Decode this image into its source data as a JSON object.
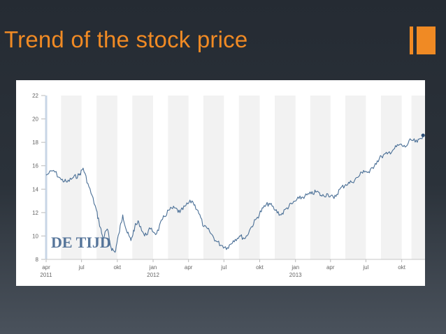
{
  "slide": {
    "title": "Trend of the stock price",
    "accent_color": "#f08a24"
  },
  "chart_data": {
    "type": "line",
    "title": "",
    "xlabel": "",
    "ylabel": "",
    "x_range": [
      "2011-04-01",
      "2013-11-30"
    ],
    "ylim": [
      8,
      22
    ],
    "y_ticks": [
      8,
      10,
      12,
      14,
      16,
      18,
      20,
      22
    ],
    "x_tick_labels": [
      {
        "date": "2011-04-01",
        "label": "apr",
        "year": "2011"
      },
      {
        "date": "2011-07-01",
        "label": "jul",
        "year": ""
      },
      {
        "date": "2011-10-01",
        "label": "okt",
        "year": ""
      },
      {
        "date": "2012-01-01",
        "label": "jan",
        "year": "2012"
      },
      {
        "date": "2012-04-01",
        "label": "apr",
        "year": ""
      },
      {
        "date": "2012-07-01",
        "label": "jul",
        "year": ""
      },
      {
        "date": "2012-10-01",
        "label": "okt",
        "year": ""
      },
      {
        "date": "2013-01-01",
        "label": "jan",
        "year": "2013"
      },
      {
        "date": "2013-04-01",
        "label": "apr",
        "year": ""
      },
      {
        "date": "2013-07-01",
        "label": "jul",
        "year": ""
      },
      {
        "date": "2013-10-01",
        "label": "okt",
        "year": ""
      }
    ],
    "grid": false,
    "shaded_bands": true,
    "line_color": "#4a6f96",
    "logo": "DE TIJD",
    "logo_color": "#3a5f8a",
    "series": [
      {
        "x": [
          "2011-04-01",
          "2011-04-20",
          "2011-05-10",
          "2011-05-25",
          "2011-06-10",
          "2011-06-25",
          "2011-07-05",
          "2011-07-20",
          "2011-08-05",
          "2011-08-15",
          "2011-08-25",
          "2011-09-05",
          "2011-09-15",
          "2011-09-25",
          "2011-10-05",
          "2011-10-15",
          "2011-10-25",
          "2011-11-05",
          "2011-11-15",
          "2011-11-25",
          "2011-12-10",
          "2011-12-25",
          "2012-01-10",
          "2012-01-25",
          "2012-02-10",
          "2012-02-25",
          "2012-03-10",
          "2012-03-25",
          "2012-04-10",
          "2012-04-25",
          "2012-05-10",
          "2012-05-25",
          "2012-06-10",
          "2012-06-25",
          "2012-07-10",
          "2012-07-25",
          "2012-08-10",
          "2012-08-25",
          "2012-09-10",
          "2012-09-25",
          "2012-10-10",
          "2012-10-25",
          "2012-11-10",
          "2012-11-25",
          "2012-12-10",
          "2012-12-25",
          "2013-01-10",
          "2013-01-25",
          "2013-02-10",
          "2013-02-25",
          "2013-03-10",
          "2013-03-25",
          "2013-04-10",
          "2013-04-25",
          "2013-05-10",
          "2013-05-25",
          "2013-06-10",
          "2013-06-25",
          "2013-07-10",
          "2013-07-25",
          "2013-08-10",
          "2013-08-25",
          "2013-09-10",
          "2013-09-25",
          "2013-10-10",
          "2013-10-25",
          "2013-11-10",
          "2013-11-25"
        ],
        "y": [
          15.2,
          15.6,
          14.8,
          14.6,
          15.0,
          15.2,
          15.8,
          14.2,
          12.6,
          11.2,
          9.8,
          10.6,
          9.0,
          8.6,
          10.2,
          11.8,
          10.4,
          9.6,
          10.8,
          11.2,
          10.0,
          10.6,
          10.2,
          11.4,
          12.2,
          12.4,
          12.0,
          12.6,
          13.0,
          12.2,
          10.8,
          10.4,
          9.6,
          9.2,
          9.0,
          9.6,
          10.0,
          9.8,
          10.8,
          11.6,
          12.4,
          12.8,
          12.2,
          11.8,
          12.4,
          12.8,
          13.2,
          13.4,
          13.6,
          13.8,
          13.4,
          13.6,
          13.2,
          14.0,
          14.4,
          14.6,
          15.0,
          15.6,
          15.4,
          16.2,
          16.8,
          17.0,
          17.4,
          17.8,
          17.6,
          18.2,
          18.0,
          18.6
        ]
      }
    ]
  }
}
